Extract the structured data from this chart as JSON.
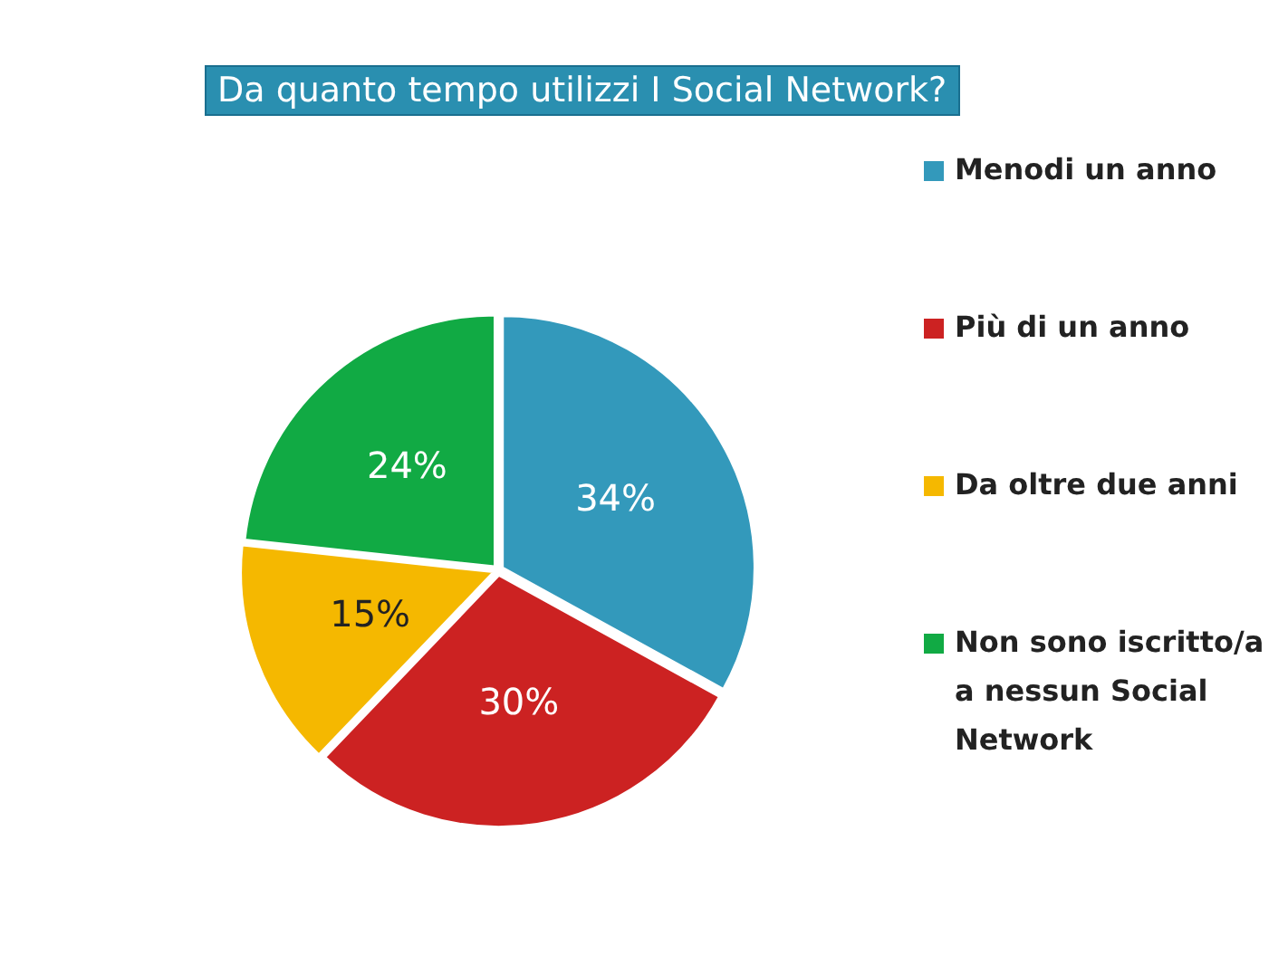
{
  "chart_data": {
    "type": "pie",
    "title": "Da quanto tempo utilizzi I Social Network?",
    "categories": [
      "Menodi un anno",
      "Più di un anno",
      "Da oltre due anni",
      "Non sono iscritto/a a nessun Social Network"
    ],
    "values": [
      34,
      30,
      15,
      24
    ],
    "value_labels": [
      "34%",
      "30%",
      "15%",
      "24%"
    ],
    "colors": [
      "#3399bb",
      "#cc2222",
      "#f5b800",
      "#11aa44"
    ],
    "legend": "right"
  }
}
